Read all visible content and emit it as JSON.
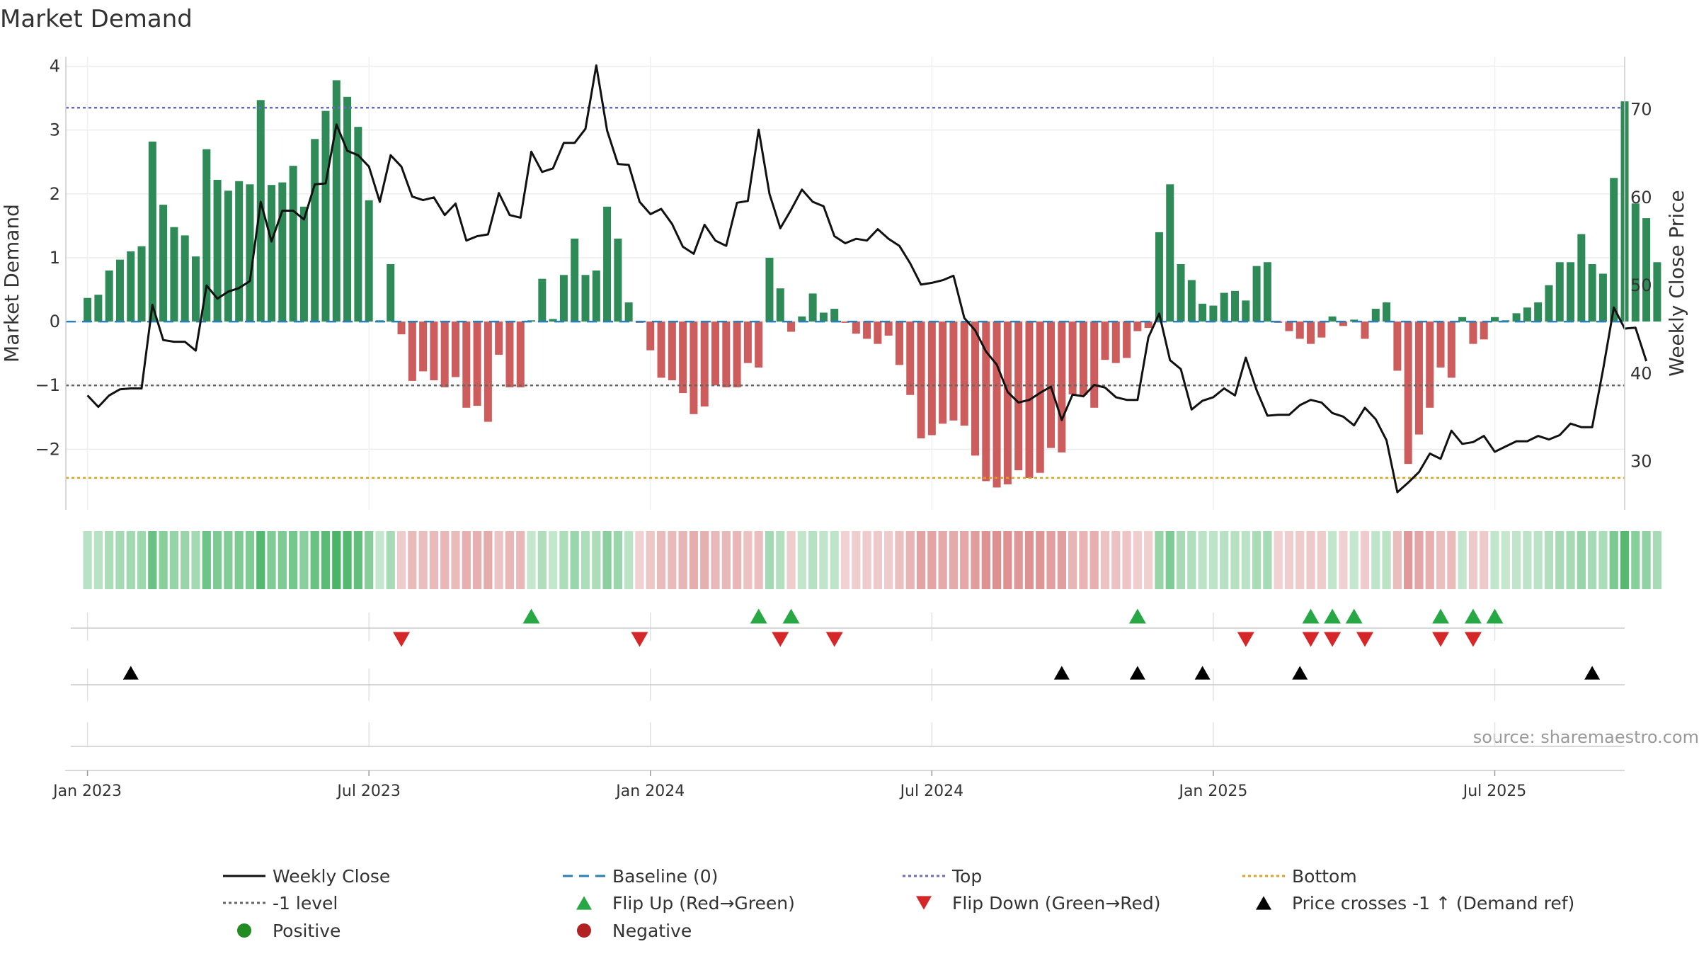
{
  "chart_data": {
    "type": "bar",
    "title": "Market Demand",
    "ylabel": "Market Demand",
    "y2label": "Weekly Close Price",
    "source": "source: sharemaestro.com",
    "ylim": [
      -2.95,
      4.15
    ],
    "y2lim": [
      24.5,
      76
    ],
    "yticks": [
      4,
      3,
      2,
      1,
      0,
      -1,
      -2
    ],
    "ytick_labels": [
      "4",
      "3",
      "2",
      "1",
      "0",
      "−1",
      "−2"
    ],
    "y2ticks": [
      70,
      60,
      50,
      40,
      30
    ],
    "y2tick_labels": [
      "70",
      "60",
      "50",
      "40",
      "30"
    ],
    "top_level": 3.35,
    "bottom_level": -2.45,
    "minus1_level": -1,
    "baseline": 0,
    "x_range": [
      -2,
      142
    ],
    "xticks": [
      0,
      26,
      52,
      78,
      104,
      130
    ],
    "xtick_labels": [
      "Jan 2023",
      "Jul 2023",
      "Jan 2024",
      "Jul 2024",
      "Jan 2025",
      "Jul 2025"
    ],
    "demand": [
      0.37,
      0.42,
      0.8,
      0.97,
      1.1,
      1.18,
      2.82,
      1.83,
      1.48,
      1.35,
      1.02,
      2.7,
      2.22,
      2.05,
      2.2,
      2.15,
      3.47,
      2.14,
      2.18,
      2.44,
      1.8,
      2.86,
      3.3,
      3.78,
      3.52,
      3.05,
      1.9,
      0.02,
      0.9,
      -0.2,
      -0.93,
      -0.78,
      -0.92,
      -1.03,
      -0.87,
      -1.35,
      -1.32,
      -1.57,
      -0.52,
      -1.03,
      -1.03,
      0.02,
      0.67,
      0.04,
      0.73,
      1.3,
      0.73,
      0.8,
      1.8,
      1.3,
      0.3,
      -0.02,
      -0.45,
      -0.88,
      -0.92,
      -1.12,
      -1.45,
      -1.33,
      -1.0,
      -1.03,
      -1.03,
      -0.65,
      -0.72,
      1.0,
      0.52,
      -0.16,
      0.08,
      0.44,
      0.14,
      0.2,
      -0.02,
      -0.19,
      -0.27,
      -0.35,
      -0.22,
      -0.68,
      -1.15,
      -1.83,
      -1.78,
      -1.6,
      -1.55,
      -1.63,
      -2.1,
      -2.5,
      -2.6,
      -2.55,
      -2.33,
      -2.45,
      -2.37,
      -1.98,
      -2.05,
      -1.14,
      -1.15,
      -1.35,
      -0.6,
      -0.65,
      -0.57,
      -0.15,
      -0.1,
      1.4,
      2.15,
      0.9,
      0.65,
      0.28,
      0.25,
      0.45,
      0.48,
      0.33,
      0.87,
      0.93,
      -0.02,
      -0.15,
      -0.27,
      -0.35,
      -0.25,
      0.08,
      -0.07,
      0.03,
      -0.27,
      0.2,
      0.3,
      -0.77,
      -2.23,
      -1.77,
      -1.35,
      -0.72,
      -0.88,
      0.07,
      -0.35,
      -0.28,
      0.07,
      0.02,
      0.13,
      0.22,
      0.3,
      0.57,
      0.93,
      0.93,
      1.37,
      0.9,
      0.75,
      2.25,
      3.45,
      1.85,
      1.62,
      0.93
    ],
    "close": [
      37.5,
      36.2,
      37.5,
      38.2,
      38.3,
      38.3,
      47.8,
      43.8,
      43.6,
      43.6,
      42.6,
      50,
      48.5,
      49.3,
      49.7,
      50.5,
      59.5,
      55,
      58.5,
      58.5,
      57.5,
      61.5,
      61.6,
      68.3,
      65.3,
      64.8,
      63.5,
      59.5,
      64.8,
      63.5,
      60.1,
      59.7,
      60,
      58,
      59.3,
      55.1,
      55.6,
      55.8,
      60.5,
      58,
      57.7,
      65.2,
      62.9,
      63.3,
      66.2,
      66.2,
      67.8,
      75,
      67.6,
      63.8,
      63.7,
      59.5,
      58.1,
      58.7,
      57,
      54.4,
      53.6,
      56.9,
      55.1,
      54.5,
      59.4,
      59.6,
      67.7,
      60.4,
      56.5,
      58.6,
      60.9,
      59.5,
      59,
      55.6,
      54.8,
      55.3,
      55.1,
      56.4,
      55.3,
      54.5,
      52.5,
      50.1,
      50.3,
      50.6,
      51.1,
      46.3,
      44.9,
      42.5,
      41,
      37.9,
      36.7,
      37,
      37.8,
      38.5,
      34.7,
      37.6,
      37.4,
      38.7,
      38.4,
      37.3,
      37,
      37,
      44.1,
      46.8,
      41.5,
      40.5,
      35.9,
      36.9,
      37.3,
      38.3,
      37.5,
      41.8,
      38.1,
      35.2,
      35.3,
      35.3,
      36.4,
      37,
      36.7,
      35.5,
      35.1,
      34.1,
      36.1,
      34.8,
      32.4,
      26.5,
      27.6,
      28.8,
      30.9,
      30.3,
      33.5,
      32,
      32.2,
      32.9,
      31.1,
      31.7,
      32.3,
      32.3,
      32.9,
      32.5,
      33,
      34.3,
      33.9,
      33.9,
      40.4,
      47.5,
      45.1,
      45.2,
      41.4
    ],
    "flip_up": [
      41,
      62,
      65,
      97,
      113,
      115,
      117,
      125,
      128,
      130
    ],
    "flip_down": [
      29,
      51,
      64,
      69,
      107,
      113,
      115,
      118,
      125,
      128
    ],
    "price_cross": [
      4,
      90,
      97,
      103,
      112,
      139
    ],
    "legend": [
      {
        "label": "Weekly Close",
        "kind": "line",
        "color": "#111111"
      },
      {
        "label": "Baseline (0)",
        "kind": "dash",
        "color": "#2b7fb8"
      },
      {
        "label": "Top",
        "kind": "dot",
        "color": "#6a6ac8"
      },
      {
        "label": "Bottom",
        "kind": "dot",
        "color": "#e0a020"
      },
      {
        "label": "-1 level",
        "kind": "dot",
        "color": "#666666"
      },
      {
        "label": "Flip Up (Red→Green)",
        "kind": "tri-up",
        "color": "#28a745"
      },
      {
        "label": "Flip Down (Green→Red)",
        "kind": "tri-down",
        "color": "#d62728"
      },
      {
        "label": "Price crosses -1 ↑ (Demand ref)",
        "kind": "tri-up",
        "color": "#000000"
      },
      {
        "label": "Positive",
        "kind": "circle",
        "color": "#228b22"
      },
      {
        "label": "Negative",
        "kind": "circle",
        "color": "#b22222"
      }
    ],
    "colors": {
      "positive_bar": "#2e8b57",
      "negative_bar": "#cd5c5c",
      "close_line": "#111111",
      "baseline": "#2b7fb8",
      "top": "#6a6ac8",
      "bottom": "#e0a020",
      "minus1": "#666666",
      "flip_up": "#28a745",
      "flip_down": "#d62728",
      "cross": "#000000"
    }
  }
}
